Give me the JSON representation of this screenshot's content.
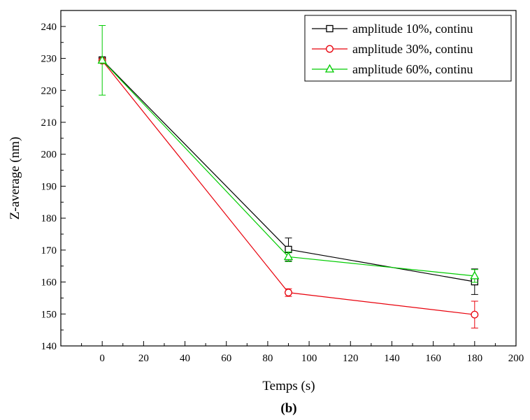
{
  "chart_data": {
    "type": "line",
    "xlabel": "Temps (s)",
    "ylabel": "Z-average (nm)",
    "caption": "(b)",
    "xlim": [
      -20,
      200
    ],
    "ylim": [
      140,
      245
    ],
    "xticks": [
      0,
      20,
      40,
      60,
      80,
      100,
      120,
      140,
      160,
      180,
      200
    ],
    "yticks": [
      140,
      150,
      160,
      170,
      180,
      190,
      200,
      210,
      220,
      230,
      240
    ],
    "legend_position": "top-right",
    "grid": false,
    "series": [
      {
        "name": "amplitude 10%, continu",
        "color": "#000000",
        "marker": "square",
        "x": [
          0,
          90,
          180
        ],
        "y": [
          229.5,
          170.2,
          160.1
        ],
        "err": [
          0.5,
          3.6,
          4.0
        ]
      },
      {
        "name": "amplitude 30%, continu",
        "color": "#e8000b",
        "marker": "circle",
        "x": [
          0,
          90,
          180
        ],
        "y": [
          229.3,
          156.7,
          149.8
        ],
        "err": [
          0.5,
          1.2,
          4.2
        ]
      },
      {
        "name": "amplitude 60%, continu",
        "color": "#00cc00",
        "marker": "triangle",
        "x": [
          0,
          90,
          180
        ],
        "y": [
          229.4,
          167.9,
          161.9
        ],
        "err": [
          10.9,
          1.5,
          2.0
        ]
      }
    ]
  }
}
